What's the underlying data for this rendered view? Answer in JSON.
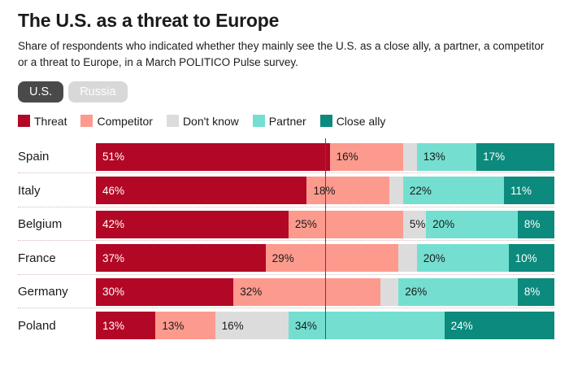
{
  "page": {
    "title": "The U.S. as a threat to Europe",
    "subtitle": "Share of respondents who indicated whether they mainly see the U.S. as a close ally, a partner, a competitor or a threat to Europe, in a March POLITICO Pulse survey."
  },
  "toggle": {
    "options": [
      {
        "label": "U.S.",
        "active": true
      },
      {
        "label": "Russia",
        "active": false
      }
    ]
  },
  "chart_data": {
    "type": "bar",
    "variant": "horizontal-stacked",
    "title": "The U.S. as a threat to Europe",
    "categories": [
      "Spain",
      "Italy",
      "Belgium",
      "France",
      "Germany",
      "Poland"
    ],
    "series": [
      {
        "name": "Threat",
        "slug": "threat",
        "color": "#b20825",
        "label_color": "#ffffff",
        "values": [
          51,
          46,
          42,
          37,
          30,
          13
        ]
      },
      {
        "name": "Competitor",
        "slug": "competitor",
        "color": "#fc9a8e",
        "label_color": "#1a1a1a",
        "values": [
          16,
          18,
          25,
          29,
          32,
          13
        ]
      },
      {
        "name": "Don't know",
        "slug": "dont-know",
        "color": "#dcdcdc",
        "label_color": "#1a1a1a",
        "values": [
          3,
          3,
          5,
          4,
          4,
          16
        ]
      },
      {
        "name": "Partner",
        "slug": "partner",
        "color": "#74dfd0",
        "label_color": "#1a1a1a",
        "values": [
          13,
          22,
          20,
          20,
          26,
          34
        ]
      },
      {
        "name": "Close ally",
        "slug": "close-ally",
        "color": "#0b8a7d",
        "label_color": "#ffffff",
        "values": [
          17,
          11,
          8,
          10,
          8,
          24
        ]
      }
    ],
    "xlim": [
      0,
      100
    ],
    "unit": "%",
    "reference_line_x": 50,
    "label_min_value_shown": 5,
    "legend_position": "top",
    "grid": "off"
  }
}
